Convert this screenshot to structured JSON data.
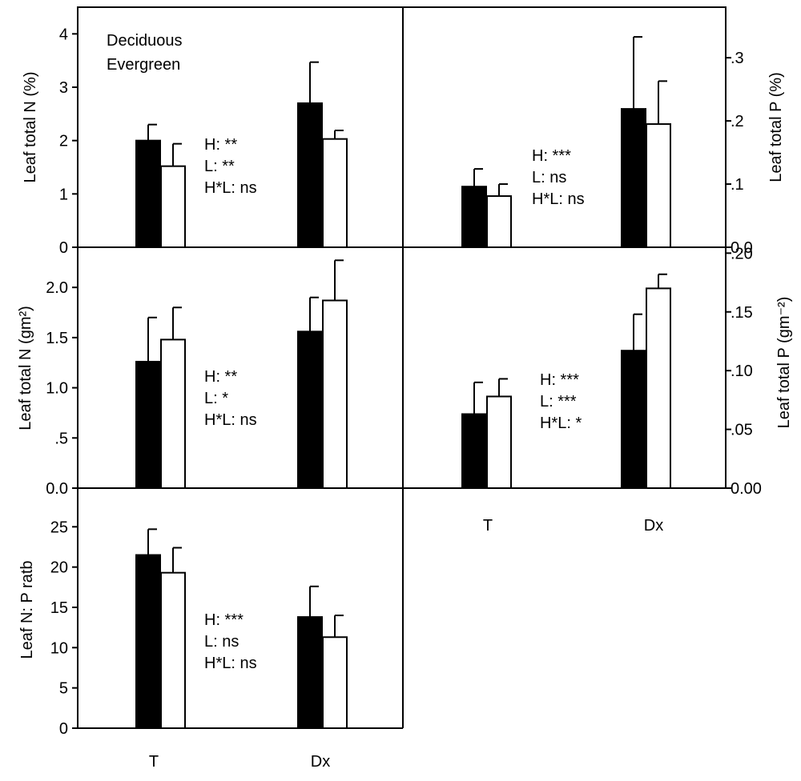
{
  "figure": {
    "legend": {
      "entries": [
        {
          "label": "Deciduous",
          "color": "#000000"
        },
        {
          "label": "Evergreen",
          "color": "#ffffff"
        }
      ]
    },
    "bottom_xticks": [
      "T",
      "Dx"
    ],
    "right_xticks": [
      "T",
      "Dx"
    ]
  },
  "chart_data": [
    {
      "type": "bar",
      "ylabel": "Leaf total N (%)",
      "ylim": [
        0,
        4.5
      ],
      "yticks": [
        "0",
        "1",
        "2",
        "3",
        "4"
      ],
      "yticks_values": [
        0,
        1,
        2,
        3,
        4
      ],
      "categories": [
        "T",
        "Dx"
      ],
      "series": [
        {
          "name": "Deciduous",
          "values": [
            2.0,
            2.7
          ],
          "errors": [
            0.3,
            0.77
          ]
        },
        {
          "name": "Evergreen",
          "values": [
            1.52,
            2.03
          ],
          "errors": [
            0.42,
            0.16
          ]
        }
      ],
      "annotations": [
        "H: **",
        "L: **",
        "H*L: ns"
      ]
    },
    {
      "type": "bar",
      "ylabel": "Leaf total P (%)",
      "ylim": [
        0,
        0.38
      ],
      "yticks": [
        "0.0",
        ".1",
        ".2",
        ".3"
      ],
      "yticks_values": [
        0,
        0.1,
        0.2,
        0.3
      ],
      "categories": [
        "T",
        "Dx"
      ],
      "series": [
        {
          "name": "Deciduous",
          "values": [
            0.096,
            0.219
          ],
          "errors": [
            0.028,
            0.114
          ]
        },
        {
          "name": "Evergreen",
          "values": [
            0.081,
            0.195
          ],
          "errors": [
            0.019,
            0.068
          ]
        }
      ],
      "annotations": [
        "H: ***",
        "L: ns",
        "H*L: ns"
      ]
    },
    {
      "type": "bar",
      "ylabel": "Leaf total N (gm²)",
      "ylim": [
        0,
        2.4
      ],
      "yticks": [
        "0.0",
        ".5",
        "1.0",
        "1.5",
        "2.0"
      ],
      "yticks_values": [
        0,
        0.5,
        1.0,
        1.5,
        2.0
      ],
      "categories": [
        "T",
        "Dx"
      ],
      "series": [
        {
          "name": "Deciduous",
          "values": [
            1.26,
            1.56
          ],
          "errors": [
            0.44,
            0.34
          ]
        },
        {
          "name": "Evergreen",
          "values": [
            1.48,
            1.87
          ],
          "errors": [
            0.32,
            0.4
          ]
        }
      ],
      "annotations": [
        "H: **",
        "L: *",
        "H*L: ns"
      ]
    },
    {
      "type": "bar",
      "ylabel": "Leaf total P (gm⁻²)",
      "ylim": [
        0,
        0.205
      ],
      "yticks": [
        "0.00",
        ".05",
        ".10",
        ".15",
        ".20"
      ],
      "yticks_values": [
        0,
        0.05,
        0.1,
        0.15,
        0.2
      ],
      "categories": [
        "T",
        "Dx"
      ],
      "series": [
        {
          "name": "Deciduous",
          "values": [
            0.063,
            0.117
          ],
          "errors": [
            0.027,
            0.031
          ]
        },
        {
          "name": "Evergreen",
          "values": [
            0.078,
            0.17
          ],
          "errors": [
            0.015,
            0.012
          ]
        }
      ],
      "annotations": [
        "H: ***",
        "L: ***",
        "H*L: *"
      ]
    },
    {
      "type": "bar",
      "ylabel": "Leaf N: P ratb",
      "ylim": [
        0,
        29.8
      ],
      "yticks": [
        "0",
        "5",
        "10",
        "15",
        "20",
        "25"
      ],
      "yticks_values": [
        0,
        5,
        10,
        15,
        20,
        25
      ],
      "categories": [
        "T",
        "Dx"
      ],
      "series": [
        {
          "name": "Deciduous",
          "values": [
            21.5,
            13.8
          ],
          "errors": [
            3.2,
            3.8
          ]
        },
        {
          "name": "Evergreen",
          "values": [
            19.3,
            11.3
          ],
          "errors": [
            3.1,
            2.7
          ]
        }
      ],
      "annotations": [
        "H: ***",
        "L: ns",
        "H*L: ns"
      ]
    }
  ]
}
